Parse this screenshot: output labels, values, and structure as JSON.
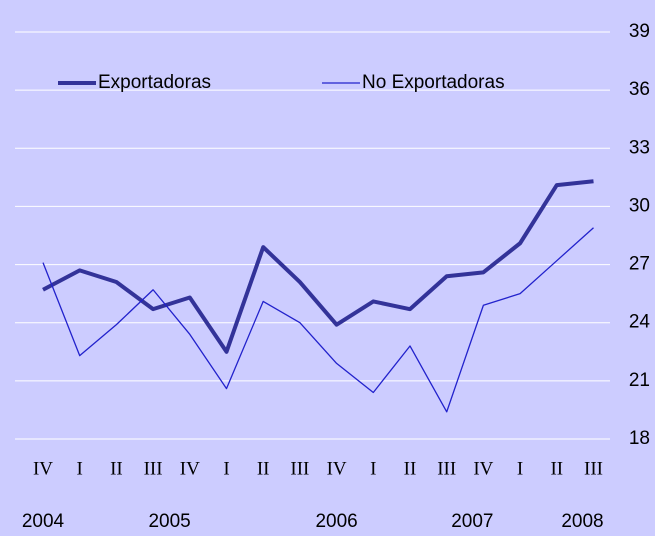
{
  "chart_data": {
    "type": "line",
    "categories": [
      "IV",
      "I",
      "II",
      "III",
      "IV",
      "I",
      "II",
      "III",
      "IV",
      "I",
      "II",
      "III",
      "IV",
      "I",
      "II",
      "III"
    ],
    "year_labels": [
      "2004",
      null,
      null,
      null,
      "2005",
      null,
      null,
      null,
      "2006",
      null,
      null,
      null,
      "2007",
      null,
      null,
      "2008"
    ],
    "series": [
      {
        "name": "Exportadoras",
        "color": "#333399",
        "values": [
          25.7,
          26.7,
          26.1,
          24.7,
          25.3,
          22.5,
          27.9,
          26.1,
          23.9,
          25.1,
          24.7,
          26.4,
          26.6,
          28.1,
          31.1,
          31.3
        ]
      },
      {
        "name": "No Exportadoras",
        "color": "#2222cc",
        "values": [
          27.1,
          22.3,
          23.9,
          25.7,
          23.4,
          20.6,
          25.1,
          24.0,
          21.9,
          20.4,
          22.8,
          19.4,
          24.9,
          25.5,
          27.2,
          28.9
        ]
      }
    ],
    "ylim": [
      18,
      39
    ],
    "yticks": [
      18,
      21,
      24,
      27,
      30,
      33,
      36,
      39
    ],
    "grid": true,
    "y_axis_side": "right",
    "legend": "top"
  }
}
